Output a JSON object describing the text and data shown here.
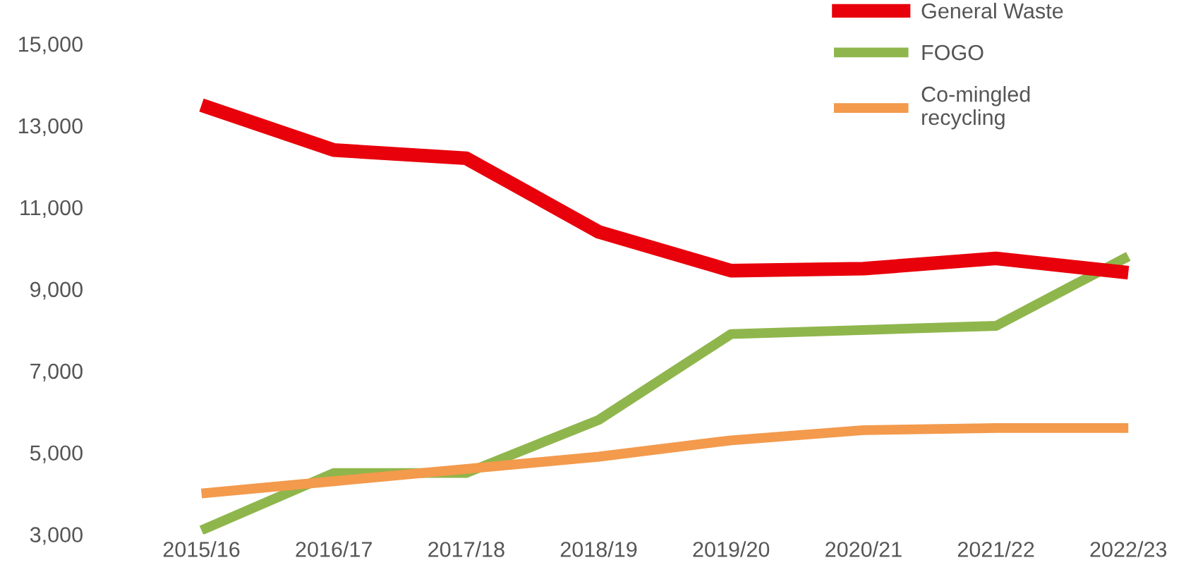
{
  "chart_data": {
    "type": "line",
    "categories": [
      "2015/16",
      "2016/17",
      "2017/18",
      "2018/19",
      "2019/20",
      "2020/21",
      "2021/22",
      "2022/23"
    ],
    "series": [
      {
        "name": "General Waste",
        "color": "#e8000b",
        "values": [
          13500,
          12400,
          12200,
          10400,
          9450,
          9500,
          9750,
          9400
        ]
      },
      {
        "name": "FOGO",
        "color": "#8fb64c",
        "values": [
          3100,
          4500,
          4500,
          5800,
          7900,
          8000,
          8100,
          9800
        ]
      },
      {
        "name": "Co-mingled\nrecycling",
        "color": "#f39a4c",
        "values": [
          4000,
          4300,
          4600,
          4900,
          5300,
          5550,
          5600,
          5600
        ]
      }
    ],
    "ylim": [
      3000,
      15000
    ],
    "yticks": [
      {
        "value": 3000,
        "label": "3,000"
      },
      {
        "value": 5000,
        "label": "5,000"
      },
      {
        "value": 7000,
        "label": "7,000"
      },
      {
        "value": 9000,
        "label": "9,000"
      },
      {
        "value": 11000,
        "label": "11,000"
      },
      {
        "value": 13000,
        "label": "13,000"
      },
      {
        "value": 15000,
        "label": "15,000"
      }
    ],
    "legend": "top right",
    "grid": false,
    "marker": "none",
    "line_style": "solid"
  }
}
